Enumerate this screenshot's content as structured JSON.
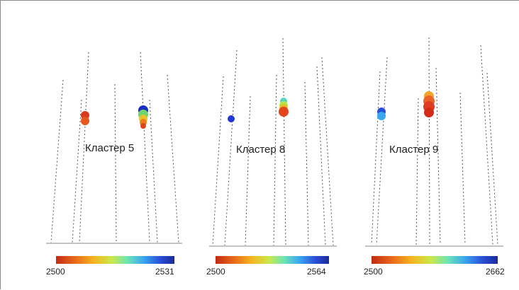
{
  "panels": [
    {
      "label": "Кластер 5",
      "colorbar": {
        "min": "2500",
        "max": "2531"
      }
    },
    {
      "label": "Кластер 8",
      "colorbar": {
        "min": "2500",
        "max": "2564"
      }
    },
    {
      "label": "Кластер 9",
      "colorbar": {
        "min": "2500",
        "max": "2662"
      }
    }
  ],
  "colorscale": [
    "#c22a12",
    "#e8691a",
    "#f5b520",
    "#c9e84a",
    "#6fe6b3",
    "#3aa6f0",
    "#2a4fd6",
    "#1a2a9a"
  ]
}
